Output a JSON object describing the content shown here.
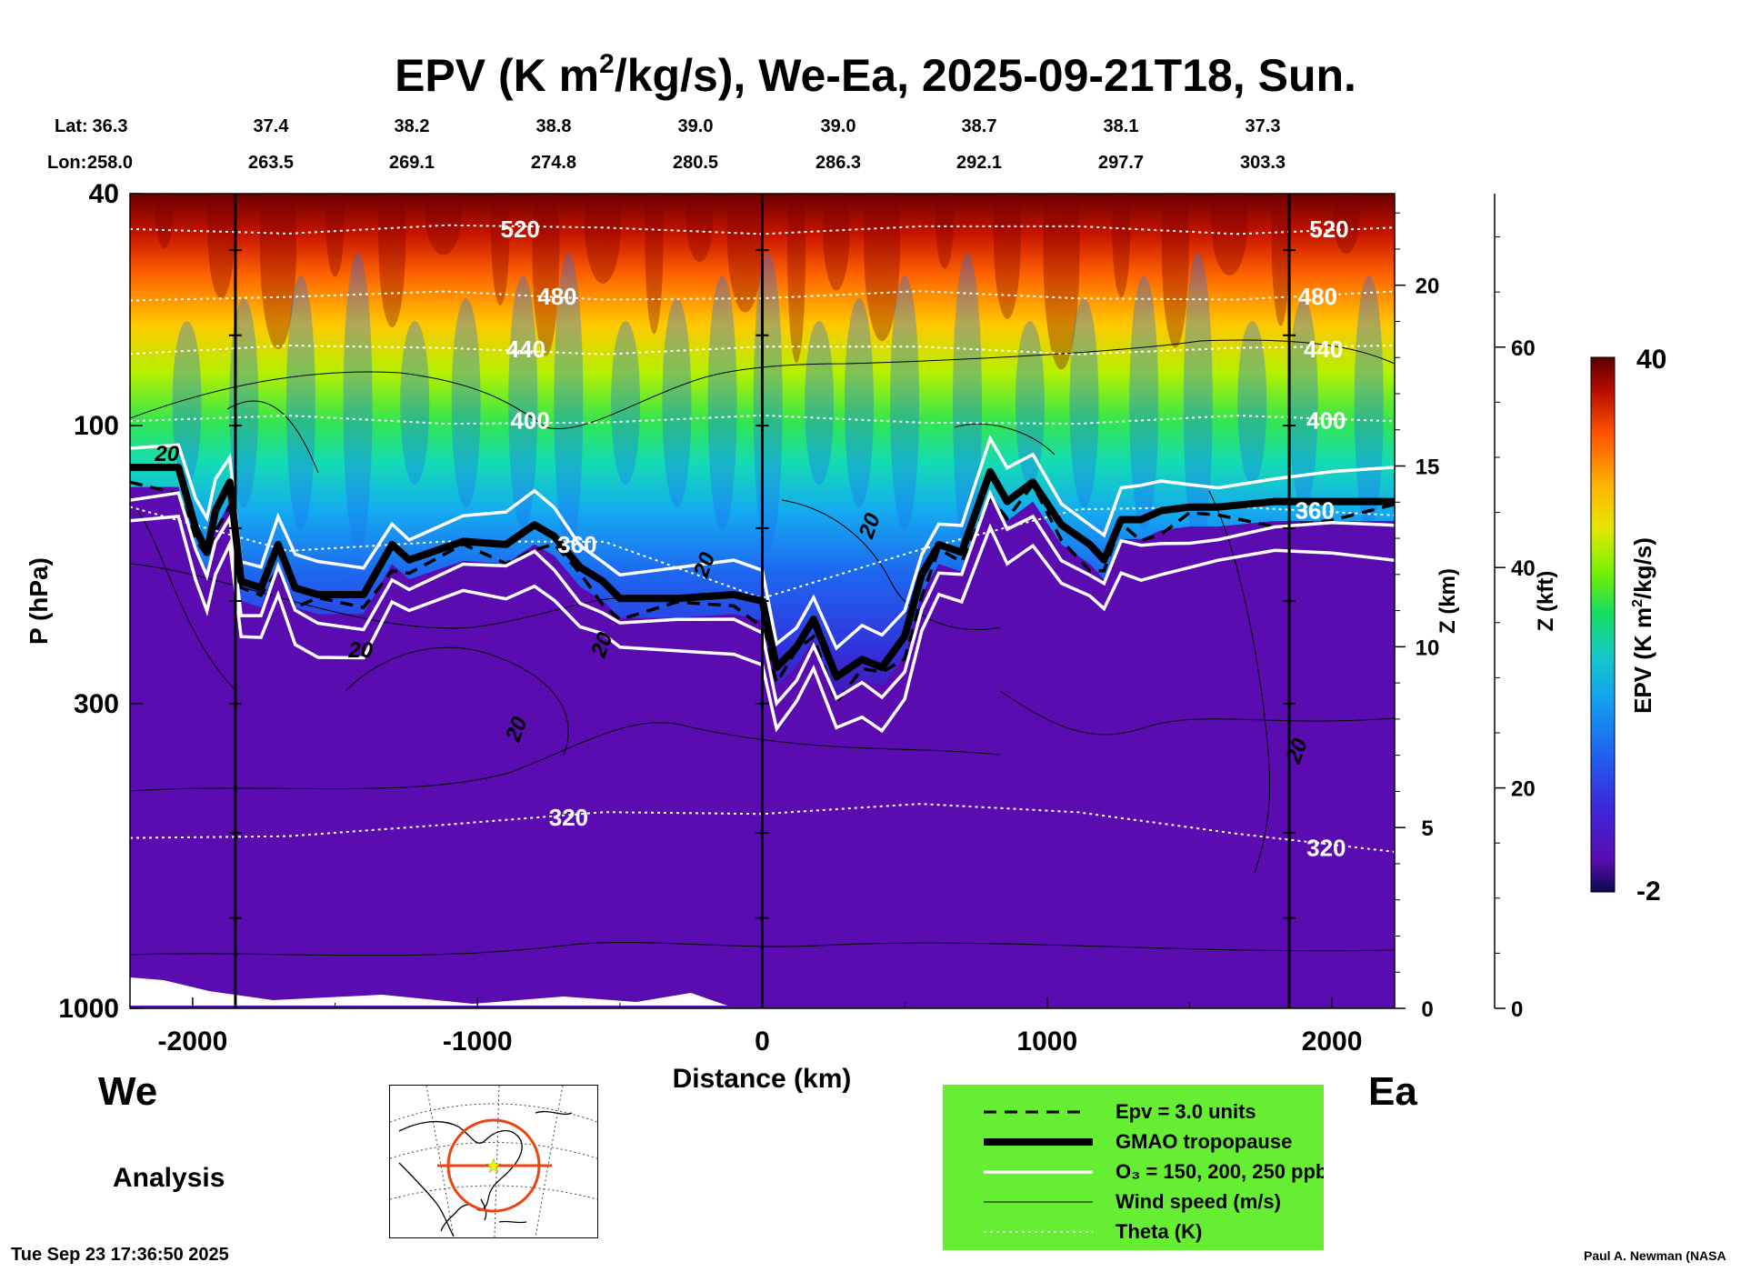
{
  "title_prefix": "EPV (K m",
  "title_sup": "2",
  "title_suffix": "/kg/s), We-Ea, 2025-09-21T18, Sun.",
  "header": {
    "lat_label": "Lat:",
    "lon_label": "Lon:",
    "lat": [
      "36.3",
      "37.4",
      "38.2",
      "38.8",
      "39.0",
      "39.0",
      "38.7",
      "38.1",
      "37.3"
    ],
    "lon": [
      "258.0",
      "263.5",
      "269.1",
      "274.8",
      "280.5",
      "286.3",
      "292.1",
      "297.7",
      "303.3"
    ]
  },
  "chart_data": {
    "type": "heatmap",
    "title": "EPV (K m2/kg/s), We-Ea, 2025-09-21T18, Sun.",
    "xlabel": "Distance (km)",
    "ylabel": "P (hPa)",
    "xlim": [
      -2220,
      2220
    ],
    "ylim": [
      1000,
      40
    ],
    "yscale": "log",
    "x_ticks": [
      -2000,
      -1000,
      0,
      1000,
      2000
    ],
    "x_tick_labels": [
      "-2000",
      "-1000",
      "0",
      "1000",
      "2000"
    ],
    "y_ticks": [
      40,
      100,
      300,
      1000
    ],
    "y_tick_labels": [
      "40",
      "100",
      "300",
      "1000"
    ],
    "vertical_lines_km": [
      -1850,
      0,
      1850
    ],
    "z_km_axis": {
      "label": "Z (km)",
      "ticks": [
        0,
        5,
        10,
        15,
        20
      ],
      "tick_labels": [
        "0",
        "5",
        "10",
        "15",
        "20"
      ]
    },
    "z_kft_axis": {
      "label": "Z (kft)",
      "ticks": [
        0,
        20,
        40,
        60
      ],
      "tick_labels": [
        "0",
        "20",
        "40",
        "60"
      ]
    },
    "colorbar": {
      "label_prefix": "EPV (K m",
      "label_sup": "2",
      "label_suffix": "/kg/s)",
      "min": -2,
      "max": 40,
      "min_label": "-2",
      "max_label": "40"
    },
    "tropopause_hpa": {
      "x": [
        -2220,
        -2050,
        -1990,
        -1950,
        -1920,
        -1870,
        -1830,
        -1760,
        -1700,
        -1640,
        -1560,
        -1400,
        -1300,
        -1240,
        -1050,
        -900,
        -800,
        -730,
        -640,
        -560,
        -500,
        -300,
        -100,
        0,
        50,
        120,
        180,
        260,
        350,
        420,
        500,
        560,
        620,
        700,
        800,
        860,
        950,
        1050,
        1150,
        1200,
        1260,
        1330,
        1400,
        1500,
        1600,
        1800,
        2000,
        2220
      ],
      "p": [
        118,
        118,
        150,
        165,
        140,
        125,
        185,
        190,
        160,
        190,
        195,
        195,
        160,
        170,
        158,
        160,
        148,
        155,
        175,
        185,
        198,
        198,
        195,
        200,
        260,
        240,
        215,
        270,
        252,
        260,
        230,
        180,
        160,
        165,
        120,
        135,
        125,
        148,
        160,
        170,
        145,
        145,
        140,
        138,
        138,
        135,
        135,
        135
      ]
    },
    "theta_levels_K": [
      {
        "label": "520",
        "p_values": [
          46,
          46,
          46,
          46,
          46,
          46,
          46,
          46,
          46
        ]
      },
      {
        "label": "480",
        "p_values": [
          60,
          60,
          60,
          60,
          60,
          60,
          60,
          60,
          60
        ]
      },
      {
        "label": "440",
        "p_values": [
          74,
          74,
          74,
          74,
          74,
          74,
          74,
          74,
          74
        ]
      },
      {
        "label": "400",
        "p_values": [
          98,
          98,
          98,
          98,
          98,
          98,
          98,
          98,
          98
        ]
      },
      {
        "label": "360",
        "p_values": [
          140,
          165,
          155,
          160,
          200,
          160,
          140,
          140,
          140
        ]
      },
      {
        "label": "320",
        "p_values": [
          520,
          500,
          480,
          470,
          460,
          440,
          470,
          500,
          530
        ]
      }
    ],
    "wind_speed_contour_labels": [
      "20",
      "20",
      "20",
      "20",
      "20",
      "20",
      "20"
    ],
    "legend": [
      {
        "style": "dashed",
        "label": "Epv = 3.0 units"
      },
      {
        "style": "thick-black",
        "label": "GMAO tropopause"
      },
      {
        "style": "white",
        "label": "O₃ = 150, 200, 250 ppb"
      },
      {
        "style": "thin-black",
        "label": "Wind speed (m/s)"
      },
      {
        "style": "dotted-white",
        "label": "Theta (K)"
      }
    ]
  },
  "direction": {
    "west": "We",
    "east": "Ea"
  },
  "analysis_label": "Analysis",
  "timestamp": "Tue Sep 23 17:36:50 2025",
  "credit": "Paul A. Newman (NASA",
  "colors": {
    "legend_bg": "#66ee33",
    "troposphere": "#5a0cb0",
    "map_track": "#ee4411",
    "map_center": "#ffff00"
  }
}
